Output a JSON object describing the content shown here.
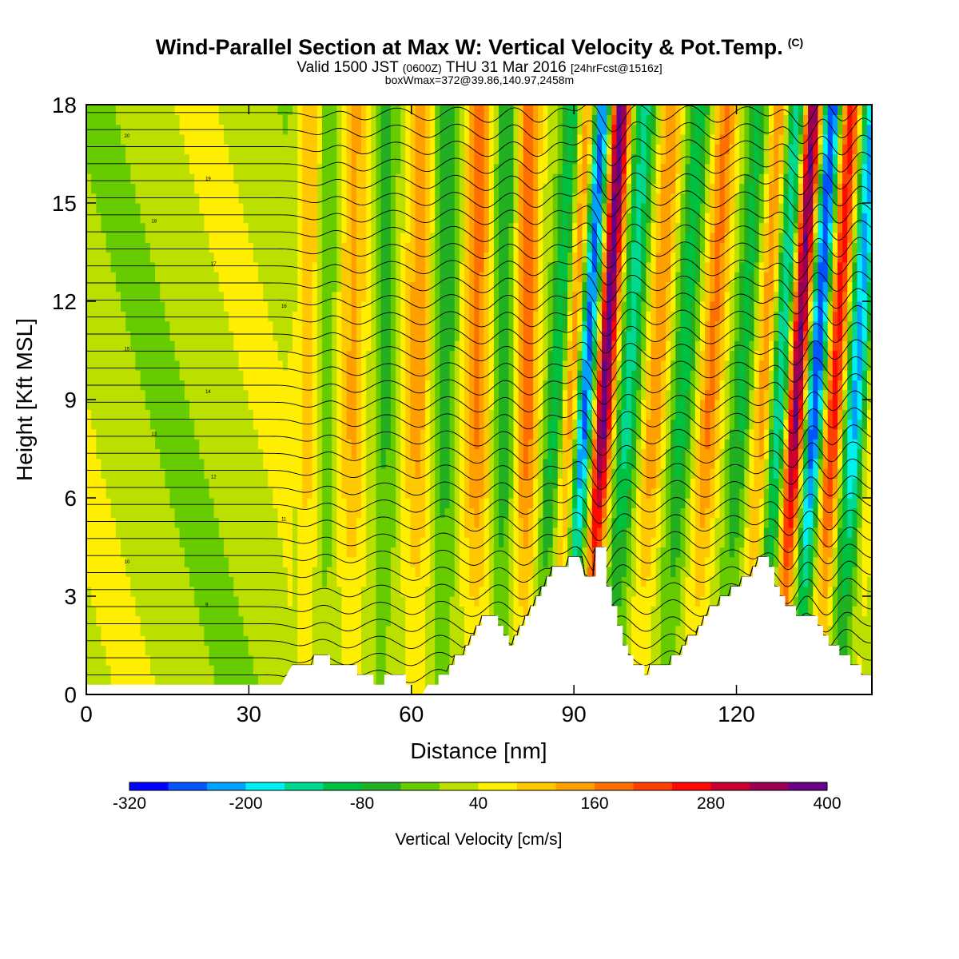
{
  "title": {
    "main": "Wind-Parallel Section at Max W: Vertical Velocity & Pot.Temp.",
    "copyright": "(C)",
    "valid_prefix": "Valid 1500 JST",
    "valid_z": "(0600Z)",
    "valid_date": "THU 31 Mar 2016",
    "forecast": "[24hrFcst@1516z]",
    "box": "boxWmax=372@39.86,140.97,2458m"
  },
  "chart_data": {
    "type": "heatmap",
    "xlabel": "Distance [nm]",
    "ylabel": "Height [Kft MSL]",
    "xlim": [
      0,
      145
    ],
    "ylim": [
      0,
      18
    ],
    "x_ticks": [
      "0",
      "30",
      "60",
      "90",
      "120"
    ],
    "x_tick_values": [
      0,
      30,
      60,
      90,
      120
    ],
    "y_ticks": [
      "0",
      "3",
      "6",
      "9",
      "12",
      "15",
      "18"
    ],
    "y_tick_values": [
      0,
      3,
      6,
      9,
      12,
      15,
      18
    ],
    "colorbar": {
      "label": "Vertical Velocity [cm/s]",
      "tick_labels": [
        "-320",
        "-200",
        "-80",
        "40",
        "160",
        "280",
        "400"
      ],
      "min": -320,
      "max": 400,
      "colors": [
        "#0000ff",
        "#0055ff",
        "#00a0ff",
        "#00f0f0",
        "#00d890",
        "#00c040",
        "#22b022",
        "#66cc00",
        "#bbe000",
        "#ffee00",
        "#ffc800",
        "#ffa000",
        "#ff7000",
        "#ff4000",
        "#ff0a00",
        "#cc0030",
        "#990055",
        "#660088"
      ]
    },
    "terrain": [
      [
        0,
        0.3
      ],
      [
        20,
        0.3
      ],
      [
        36,
        0.3
      ],
      [
        37,
        0.6
      ],
      [
        38,
        0.9
      ],
      [
        42,
        0.9
      ],
      [
        42,
        1.2
      ],
      [
        45,
        1.2
      ],
      [
        45,
        0.9
      ],
      [
        50,
        0.9
      ],
      [
        50,
        0.6
      ],
      [
        53,
        0.6
      ],
      [
        53,
        0.3
      ],
      [
        55,
        0.3
      ],
      [
        55,
        0.6
      ],
      [
        59,
        0.6
      ],
      [
        59,
        0.3
      ],
      [
        60,
        0.3
      ],
      [
        60,
        0.0
      ],
      [
        62,
        0.0
      ],
      [
        63,
        0.3
      ],
      [
        65,
        0.3
      ],
      [
        65,
        0.6
      ],
      [
        67,
        0.6
      ],
      [
        67,
        0.9
      ],
      [
        68,
        0.9
      ],
      [
        68,
        1.2
      ],
      [
        70,
        1.2
      ],
      [
        70,
        1.5
      ],
      [
        71,
        1.5
      ],
      [
        71,
        1.8
      ],
      [
        72,
        1.8
      ],
      [
        72,
        2.1
      ],
      [
        73,
        2.1
      ],
      [
        73,
        2.4
      ],
      [
        76,
        2.4
      ],
      [
        76,
        2.1
      ],
      [
        77,
        2.1
      ],
      [
        77,
        1.8
      ],
      [
        78,
        1.8
      ],
      [
        78,
        1.5
      ],
      [
        79,
        1.5
      ],
      [
        79,
        1.8
      ],
      [
        80,
        1.8
      ],
      [
        80,
        2.1
      ],
      [
        81,
        2.1
      ],
      [
        81,
        2.4
      ],
      [
        82,
        2.4
      ],
      [
        82,
        2.7
      ],
      [
        83,
        2.7
      ],
      [
        83,
        3.0
      ],
      [
        84,
        3.0
      ],
      [
        84,
        3.3
      ],
      [
        85,
        3.3
      ],
      [
        85,
        3.6
      ],
      [
        86,
        3.6
      ],
      [
        86,
        3.9
      ],
      [
        89,
        3.9
      ],
      [
        89,
        4.2
      ],
      [
        91,
        4.2
      ],
      [
        92,
        3.6
      ],
      [
        94,
        3.6
      ],
      [
        94,
        4.5
      ],
      [
        96,
        4.5
      ],
      [
        96,
        3.3
      ],
      [
        97,
        3.3
      ],
      [
        97,
        2.7
      ],
      [
        98,
        2.7
      ],
      [
        98,
        2.1
      ],
      [
        99,
        2.1
      ],
      [
        99,
        1.5
      ],
      [
        100,
        1.5
      ],
      [
        100,
        1.2
      ],
      [
        101,
        1.2
      ],
      [
        101,
        0.9
      ],
      [
        103,
        0.9
      ],
      [
        103,
        0.6
      ],
      [
        104,
        0.6
      ],
      [
        104,
        0.9
      ],
      [
        108,
        0.9
      ],
      [
        108,
        1.2
      ],
      [
        110,
        1.2
      ],
      [
        110,
        1.5
      ],
      [
        111,
        1.5
      ],
      [
        111,
        1.8
      ],
      [
        113,
        1.8
      ],
      [
        113,
        2.1
      ],
      [
        114,
        2.1
      ],
      [
        114,
        2.4
      ],
      [
        115,
        2.4
      ],
      [
        115,
        2.7
      ],
      [
        117,
        2.7
      ],
      [
        117,
        3.0
      ],
      [
        119,
        3.0
      ],
      [
        119,
        3.3
      ],
      [
        121,
        3.3
      ],
      [
        121,
        3.6
      ],
      [
        123,
        3.6
      ],
      [
        123,
        3.9
      ],
      [
        124,
        3.9
      ],
      [
        124,
        4.2
      ],
      [
        126,
        4.2
      ],
      [
        126,
        3.9
      ],
      [
        127,
        3.9
      ],
      [
        127,
        3.3
      ],
      [
        128,
        3.3
      ],
      [
        128,
        3.0
      ],
      [
        129,
        3.0
      ],
      [
        129,
        2.7
      ],
      [
        131,
        2.7
      ],
      [
        131,
        2.4
      ],
      [
        135,
        2.4
      ],
      [
        135,
        2.1
      ],
      [
        136,
        2.1
      ],
      [
        136,
        1.8
      ],
      [
        137,
        1.8
      ],
      [
        137,
        1.5
      ],
      [
        139,
        1.5
      ],
      [
        139,
        1.2
      ],
      [
        141,
        1.2
      ],
      [
        141,
        0.9
      ],
      [
        143,
        0.9
      ],
      [
        143,
        0.6
      ],
      [
        145,
        0.6
      ]
    ],
    "w_features": [
      {
        "x": 8,
        "w": 0,
        "sigma": 1.0
      },
      {
        "x": 41,
        "w": 90,
        "sigma": 1.6
      },
      {
        "x": 44,
        "w": -60,
        "sigma": 1.5
      },
      {
        "x": 49,
        "w": 110,
        "sigma": 1.8
      },
      {
        "x": 55,
        "w": -70,
        "sigma": 1.6
      },
      {
        "x": 61,
        "w": 120,
        "sigma": 1.8
      },
      {
        "x": 66,
        "w": -90,
        "sigma": 1.6
      },
      {
        "x": 72,
        "w": 150,
        "sigma": 1.8
      },
      {
        "x": 77,
        "w": -110,
        "sigma": 1.5
      },
      {
        "x": 81,
        "w": 170,
        "sigma": 1.6
      },
      {
        "x": 86,
        "w": -150,
        "sigma": 1.5
      },
      {
        "x": 88.5,
        "w": 200,
        "sigma": 1.4
      },
      {
        "x": 91,
        "w": -320,
        "sigma": 1.3
      },
      {
        "x": 94.5,
        "w": 372,
        "sigma": 1.3
      },
      {
        "x": 99,
        "w": -160,
        "sigma": 1.5
      },
      {
        "x": 104,
        "w": 130,
        "sigma": 1.6
      },
      {
        "x": 109,
        "w": -120,
        "sigma": 1.6
      },
      {
        "x": 114,
        "w": 150,
        "sigma": 1.6
      },
      {
        "x": 120,
        "w": -110,
        "sigma": 1.5
      },
      {
        "x": 124,
        "w": 140,
        "sigma": 1.5
      },
      {
        "x": 127,
        "w": -220,
        "sigma": 1.4
      },
      {
        "x": 130,
        "w": 372,
        "sigma": 1.3
      },
      {
        "x": 133.5,
        "w": -320,
        "sigma": 1.3
      },
      {
        "x": 137,
        "w": 250,
        "sigma": 1.4
      },
      {
        "x": 141,
        "w": -240,
        "sigma": 1.5
      },
      {
        "x": 144,
        "w": 80,
        "sigma": 1.2
      }
    ],
    "theta_labels": [
      "20",
      "19",
      "18",
      "17",
      "16",
      "15",
      "14",
      "13",
      "12",
      "11",
      "10",
      "9"
    ]
  }
}
